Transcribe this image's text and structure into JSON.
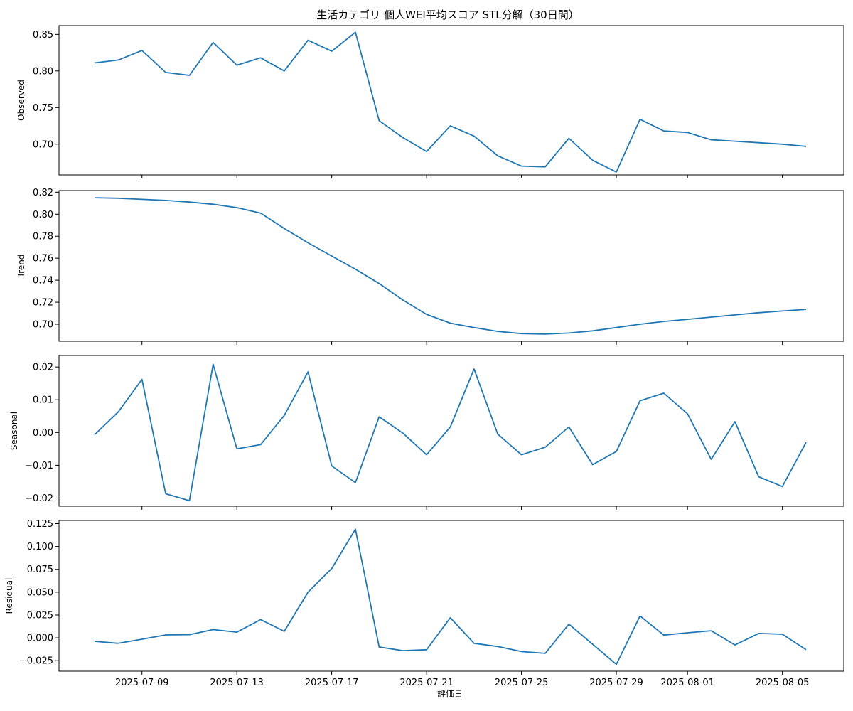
{
  "chart_data": {
    "type": "line",
    "title": "生活カテゴリ 個人WEI平均スコア STL分解（30日間）",
    "xlabel": "評価日",
    "x": [
      "2025-07-07",
      "2025-07-08",
      "2025-07-09",
      "2025-07-10",
      "2025-07-11",
      "2025-07-12",
      "2025-07-13",
      "2025-07-14",
      "2025-07-15",
      "2025-07-16",
      "2025-07-17",
      "2025-07-18",
      "2025-07-19",
      "2025-07-20",
      "2025-07-21",
      "2025-07-22",
      "2025-07-23",
      "2025-07-24",
      "2025-07-25",
      "2025-07-26",
      "2025-07-27",
      "2025-07-28",
      "2025-07-29",
      "2025-07-30",
      "2025-07-31",
      "2025-08-01",
      "2025-08-02",
      "2025-08-03",
      "2025-08-04",
      "2025-08-05",
      "2025-08-06"
    ],
    "x_ticks": [
      "2025-07-09",
      "2025-07-13",
      "2025-07-17",
      "2025-07-21",
      "2025-07-25",
      "2025-07-29",
      "2025-08-01",
      "2025-08-05"
    ],
    "shared_x": true,
    "panels": [
      {
        "ylabel": "Observed",
        "ylim": [
          0.658,
          0.862
        ],
        "yticks": [
          0.7,
          0.75,
          0.8,
          0.85
        ],
        "ytick_labels": [
          "0.70",
          "0.75",
          "0.80",
          "0.85"
        ],
        "values": [
          0.811,
          0.815,
          0.828,
          0.798,
          0.794,
          0.839,
          0.808,
          0.818,
          0.8,
          0.842,
          0.827,
          0.853,
          0.732,
          0.709,
          0.69,
          0.725,
          0.711,
          0.684,
          0.67,
          0.669,
          0.708,
          0.678,
          0.662,
          0.734,
          0.718,
          0.716,
          0.706,
          0.704,
          0.702,
          0.7,
          0.697
        ]
      },
      {
        "ylabel": "Trend",
        "ylim": [
          0.6845,
          0.8215
        ],
        "yticks": [
          0.7,
          0.72,
          0.74,
          0.76,
          0.78,
          0.8,
          0.82
        ],
        "ytick_labels": [
          "0.70",
          "0.72",
          "0.74",
          "0.76",
          "0.78",
          "0.80",
          "0.82"
        ],
        "values": [
          0.815,
          0.8145,
          0.8135,
          0.8125,
          0.811,
          0.809,
          0.806,
          0.801,
          0.787,
          0.774,
          0.762,
          0.75,
          0.737,
          0.722,
          0.709,
          0.701,
          0.697,
          0.6935,
          0.6915,
          0.691,
          0.692,
          0.694,
          0.697,
          0.7,
          0.7025,
          0.7045,
          0.7065,
          0.7085,
          0.7105,
          0.712,
          0.7135
        ]
      },
      {
        "ylabel": "Seasonal",
        "ylim": [
          -0.0225,
          0.0235
        ],
        "yticks": [
          -0.02,
          -0.01,
          0.0,
          0.01,
          0.02
        ],
        "ytick_labels": [
          "−0.02",
          "−0.01",
          "0.00",
          "0.01",
          "0.02"
        ],
        "values": [
          -0.0007,
          0.0063,
          0.0162,
          -0.0187,
          -0.0208,
          0.0208,
          -0.005,
          -0.0037,
          0.0052,
          0.0185,
          -0.0102,
          -0.0153,
          0.0048,
          -0.0002,
          -0.0068,
          0.0017,
          0.0194,
          -0.0005,
          -0.0068,
          -0.0045,
          0.0017,
          -0.0098,
          -0.0058,
          0.0097,
          0.012,
          0.0057,
          -0.0082,
          0.0033,
          -0.0135,
          -0.0165,
          -0.003
        ]
      },
      {
        "ylabel": "Residual",
        "ylim": [
          -0.0365,
          0.1285
        ],
        "yticks": [
          -0.025,
          0.0,
          0.025,
          0.05,
          0.075,
          0.1,
          0.125
        ],
        "ytick_labels": [
          "−0.025",
          "0.000",
          "0.025",
          "0.050",
          "0.075",
          "0.100",
          "0.125"
        ],
        "values": [
          -0.0038,
          -0.006,
          -0.0015,
          0.0032,
          0.0035,
          0.009,
          0.0062,
          0.02,
          0.0072,
          0.05,
          0.076,
          0.119,
          -0.01,
          -0.014,
          -0.013,
          0.022,
          -0.006,
          -0.0095,
          -0.015,
          -0.017,
          0.015,
          -0.007,
          -0.029,
          0.024,
          0.003,
          0.0055,
          0.0078,
          -0.0078,
          0.0048,
          0.004,
          -0.013
        ]
      }
    ],
    "line_color": "#1f77b4",
    "grid": false,
    "legend": "none"
  }
}
